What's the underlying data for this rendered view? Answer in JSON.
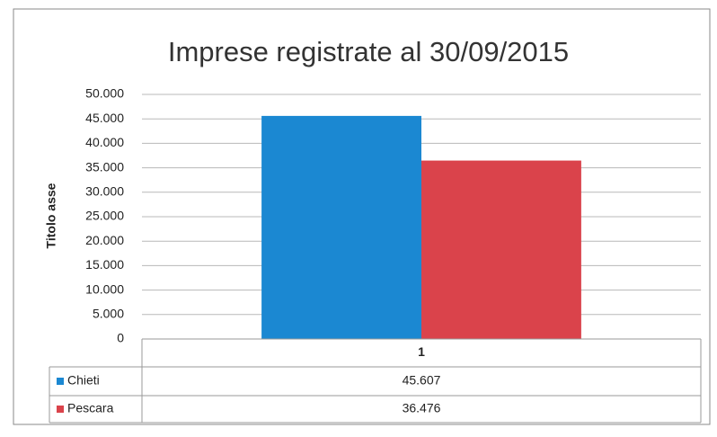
{
  "chart_data": {
    "type": "bar",
    "title": "Imprese registrate al 30/09/2015",
    "y_axis_label": "Titolo asse",
    "categories": [
      "1"
    ],
    "series": [
      {
        "name": "Chieti",
        "color": "#1b88d2",
        "values": [
          45607
        ],
        "value_labels": [
          "45.607"
        ]
      },
      {
        "name": "Pescara",
        "color": "#da434b",
        "values": [
          36476
        ],
        "value_labels": [
          "36.476"
        ]
      }
    ],
    "ylim": [
      0,
      50000
    ],
    "yticks": [
      0,
      {
        "value": 5000,
        "label": "5.000"
      },
      {
        "value": 10000,
        "label": "10.000"
      },
      {
        "value": 15000,
        "label": "15.000"
      },
      {
        "value": 20000,
        "label": "20.000"
      },
      {
        "value": 25000,
        "label": "25.000"
      },
      {
        "value": 30000,
        "label": "30.000"
      },
      {
        "value": 35000,
        "label": "35.000"
      },
      {
        "value": 40000,
        "label": "40.000"
      },
      {
        "value": 45000,
        "label": "45.000"
      },
      {
        "value": 50000,
        "label": "50.000"
      }
    ],
    "grid": true,
    "data_table": true
  }
}
